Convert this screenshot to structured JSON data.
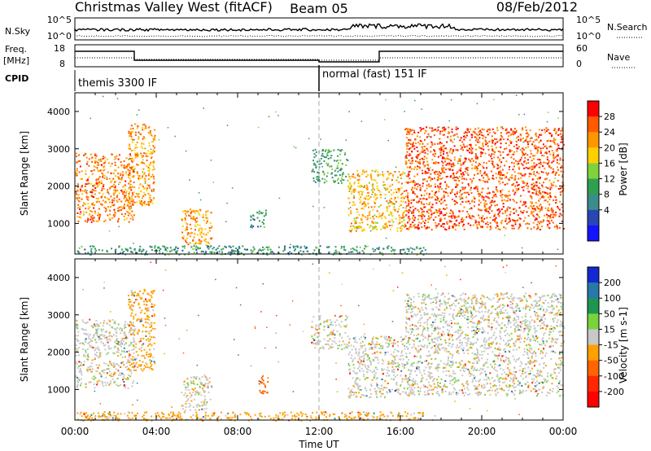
{
  "header": {
    "title": "Christmas Valley West (fitACF)",
    "beam": "Beam 05",
    "date": "08/Feb/2012"
  },
  "summary": {
    "nsky_label": "N.Sky",
    "nsky_ticks": [
      "10^5",
      "10^0"
    ],
    "nsearch_label": "N.Search",
    "nsearch_ticks": [
      "10^5",
      "10^0"
    ],
    "freq_label": "Freq.",
    "freq_unit": "[MHz]",
    "freq_ticks": [
      "18",
      "8"
    ],
    "nave_label": "Nave",
    "nave_ticks": [
      "60",
      "0"
    ],
    "cpid_label": "CPID",
    "cpid_segments": [
      {
        "label": "themis 3300 IF",
        "start_hour": 0
      },
      {
        "label": "normal (fast) 151 IF",
        "start_hour": 12
      }
    ]
  },
  "chart_data": [
    {
      "type": "heatmap",
      "name": "power",
      "xlabel": "",
      "ylabel": "Slant Range [km]",
      "xlim": [
        0,
        24
      ],
      "ylim": [
        180,
        4500
      ],
      "yticks": [
        "1000",
        "2000",
        "3000",
        "4000"
      ],
      "colorbar_label": "Power [dB]",
      "colorbar_ticks": [
        "28",
        "24",
        "20",
        "16",
        "12",
        "8",
        "4"
      ],
      "colorbar_colors": [
        "#ff0000",
        "#ff5a00",
        "#ff9600",
        "#ffd000",
        "#7fd23c",
        "#2fa050",
        "#3c8c8c",
        "#2846b4",
        "#1414ff"
      ],
      "regions": [
        {
          "t0": 0.0,
          "t1": 2.9,
          "r0": 1050,
          "r1": 2900,
          "level": 24
        },
        {
          "t0": 2.6,
          "t1": 3.9,
          "r0": 1500,
          "r1": 3700,
          "level": 22
        },
        {
          "t0": 5.2,
          "t1": 6.7,
          "r0": 450,
          "r1": 1400,
          "level": 22
        },
        {
          "t0": 8.6,
          "t1": 9.4,
          "r0": 900,
          "r1": 1400,
          "level": 8
        },
        {
          "t0": 11.6,
          "t1": 13.4,
          "r0": 2100,
          "r1": 3000,
          "level": 10
        },
        {
          "t0": 13.4,
          "t1": 16.2,
          "r0": 800,
          "r1": 2450,
          "level": 20
        },
        {
          "t0": 16.2,
          "t1": 24.0,
          "r0": 850,
          "r1": 3600,
          "level": 26
        },
        {
          "t0": 0.0,
          "t1": 17.2,
          "r0": 180,
          "r1": 420,
          "level": 8
        }
      ]
    },
    {
      "type": "heatmap",
      "name": "velocity",
      "xlabel": "Time UT",
      "ylabel": "Slant Range [km]",
      "xlim": [
        0,
        24
      ],
      "ylim": [
        180,
        4500
      ],
      "xticks": [
        "00:00",
        "04:00",
        "08:00",
        "12:00",
        "16:00",
        "20:00",
        "00:00"
      ],
      "yticks": [
        "1000",
        "2000",
        "3000",
        "4000"
      ],
      "colorbar_label": "Velocity [m s-1]",
      "colorbar_ticks": [
        "200",
        "100",
        "50",
        "15",
        "-15",
        "-50",
        "-100",
        "-200"
      ],
      "colorbar_colors": [
        "#1428d2",
        "#2878aa",
        "#1e9650",
        "#7ad23c",
        "#c8c8c8",
        "#ffa000",
        "#ff6400",
        "#ff2800",
        "#ff0000"
      ],
      "regions": [
        {
          "t0": 0.0,
          "t1": 2.9,
          "r0": 1050,
          "r1": 2900,
          "level": 0
        },
        {
          "t0": 2.6,
          "t1": 3.9,
          "r0": 1500,
          "r1": 3700,
          "level": -30
        },
        {
          "t0": 5.2,
          "t1": 6.7,
          "r0": 450,
          "r1": 1400,
          "level": 0
        },
        {
          "t0": 9.0,
          "t1": 9.5,
          "r0": 900,
          "r1": 1400,
          "level": -60
        },
        {
          "t0": 11.6,
          "t1": 13.4,
          "r0": 2100,
          "r1": 3000,
          "level": 0
        },
        {
          "t0": 13.4,
          "t1": 16.2,
          "r0": 800,
          "r1": 2450,
          "level": 0
        },
        {
          "t0": 16.2,
          "t1": 24.0,
          "r0": 850,
          "r1": 3600,
          "level": 0
        },
        {
          "t0": 0.0,
          "t1": 17.2,
          "r0": 180,
          "r1": 420,
          "level": -30
        }
      ]
    }
  ]
}
